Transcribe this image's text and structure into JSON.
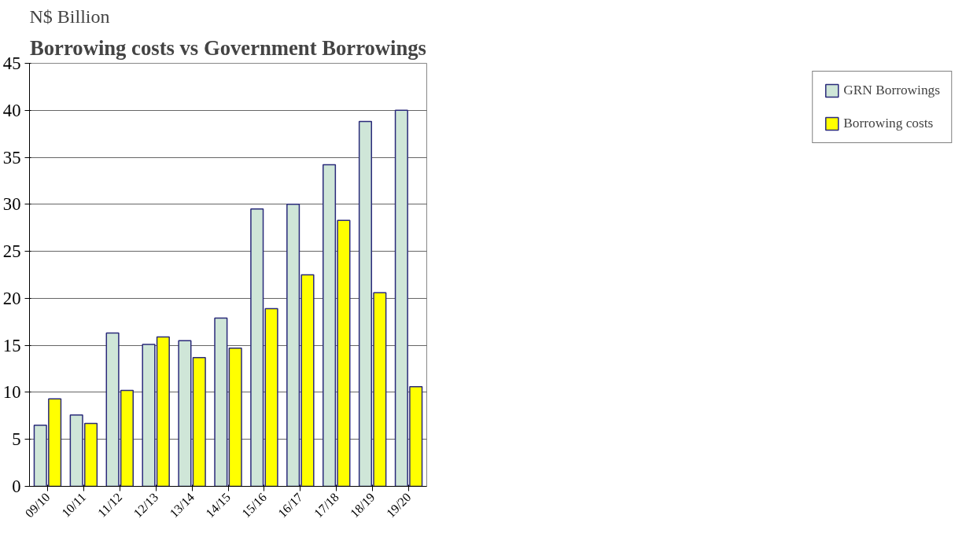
{
  "chart_data": {
    "type": "bar",
    "title": "Borrowing costs vs Government Borrowings",
    "ylabel": "N$ Billion",
    "categories": [
      "09/10",
      "10/11",
      "11/12",
      "12/13",
      "13/14",
      "14/15",
      "15/16",
      "16/17",
      "17/18",
      "18/19",
      "19/20"
    ],
    "series": [
      {
        "name": "GRN Borrowings",
        "color": "#cfe6d8",
        "values": [
          6.5,
          7.6,
          16.3,
          15.1,
          15.5,
          17.9,
          29.5,
          30.0,
          34.2,
          38.8,
          40.0
        ]
      },
      {
        "name": "Borrowing costs",
        "color": "#ffff00",
        "values": [
          9.3,
          6.7,
          10.2,
          15.9,
          13.7,
          14.7,
          18.9,
          22.5,
          28.3,
          20.6,
          10.6
        ]
      }
    ],
    "ylim": [
      0,
      45
    ],
    "yticks": [
      0,
      5,
      10,
      15,
      20,
      25,
      30,
      35,
      40,
      45
    ],
    "grid": "y",
    "legend": "right"
  }
}
